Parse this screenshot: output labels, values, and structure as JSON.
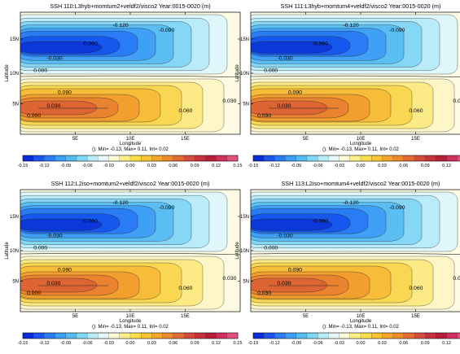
{
  "chart_data": [
    {
      "type": "heatmap",
      "title": "SSH 110:L3hyb+momtum2+veldf2/visco2 Year:0015-0020 (m)",
      "xlabel": "Longitude",
      "ylabel": "Latitude",
      "x_ticks": [
        "5E",
        "10E",
        "15E"
      ],
      "y_ticks": [
        "5N",
        "10N",
        "15N"
      ],
      "stats": "(): Min= -0.13, Max= 0.11, Int= 0.02",
      "contour_labels": [
        "-0.120",
        "-0.090",
        "-0.060",
        "-0.030",
        "0.000",
        "0.030",
        "0.060",
        "0.090",
        "0.000",
        "0.030"
      ],
      "min": -0.13,
      "max": 0.11,
      "interval": 0.02
    },
    {
      "type": "heatmap",
      "title": "SSH 111:L3hyb+momtum4+veldf2/visco2 Year:0015-0020 (m)",
      "xlabel": "Longitude",
      "ylabel": "Latitude",
      "x_ticks": [
        "5E",
        "10E",
        "15E"
      ],
      "y_ticks": [
        "5N",
        "10N",
        "15N"
      ],
      "stats": "(): Min= -0.13, Max= 0.11, Int= 0.02",
      "contour_labels": [
        "-0.120",
        "-0.090",
        "-0.060",
        "-0.030",
        "0.000",
        "0.030",
        "0.060",
        "0.090",
        "0.030",
        "0.000"
      ],
      "min": -0.13,
      "max": 0.11,
      "interval": 0.02
    },
    {
      "type": "heatmap",
      "title": "SSH 112:L2iso+momtum2+veldf2/visco2 Year:0015-0020 (m)",
      "xlabel": "Longitude",
      "ylabel": "Latitude",
      "x_ticks": [
        "5E",
        "10E",
        "15E"
      ],
      "y_ticks": [
        "5N",
        "10N",
        "15N"
      ],
      "stats": "(): Min= -0.13, Max= 0.11, Int= 0.02",
      "contour_labels": [
        "-0.120",
        "-0.090",
        "-0.060",
        "-0.030",
        "0.000",
        "0.030",
        "0.060",
        "0.090",
        "0.000",
        "0.030"
      ],
      "min": -0.13,
      "max": 0.11,
      "interval": 0.02
    },
    {
      "type": "heatmap",
      "title": "SSH 113:L2iso+momtum4+veldf2/visco2 Year:0015-0020 (m)",
      "xlabel": "Longitude",
      "ylabel": "Latitude",
      "x_ticks": [
        "5E",
        "10E",
        "15E"
      ],
      "y_ticks": [
        "5N",
        "10N",
        "15N"
      ],
      "stats": "(): Min= -0.13, Max= 0.11, Int= 0.02",
      "contour_labels": [
        "-0.120",
        "-0.090",
        "-0.060",
        "-0.030",
        "0.000",
        "0.030",
        "0.060",
        "0.090",
        "0.030",
        "0.000"
      ],
      "min": -0.13,
      "max": 0.11,
      "interval": 0.02
    }
  ],
  "colorbar": {
    "labels": [
      "-0.15",
      "-0.12",
      "-0.09",
      "-0.06",
      "-0.03",
      "0.00",
      "0.03",
      "0.06",
      "0.09",
      "0.12",
      "0.15"
    ],
    "colors": [
      "#0a2bd8",
      "#1a55f0",
      "#2a7cf5",
      "#3a9ff5",
      "#52bef0",
      "#7fd8f5",
      "#b8ecf8",
      "#e6f8fb",
      "#fdfbd6",
      "#fdf08a",
      "#fbe04a",
      "#f9c632",
      "#f5a628",
      "#ee8a2c",
      "#e46c34",
      "#d64c3c",
      "#c8323c",
      "#b81e3a",
      "#d0305a",
      "#e0507a"
    ]
  }
}
